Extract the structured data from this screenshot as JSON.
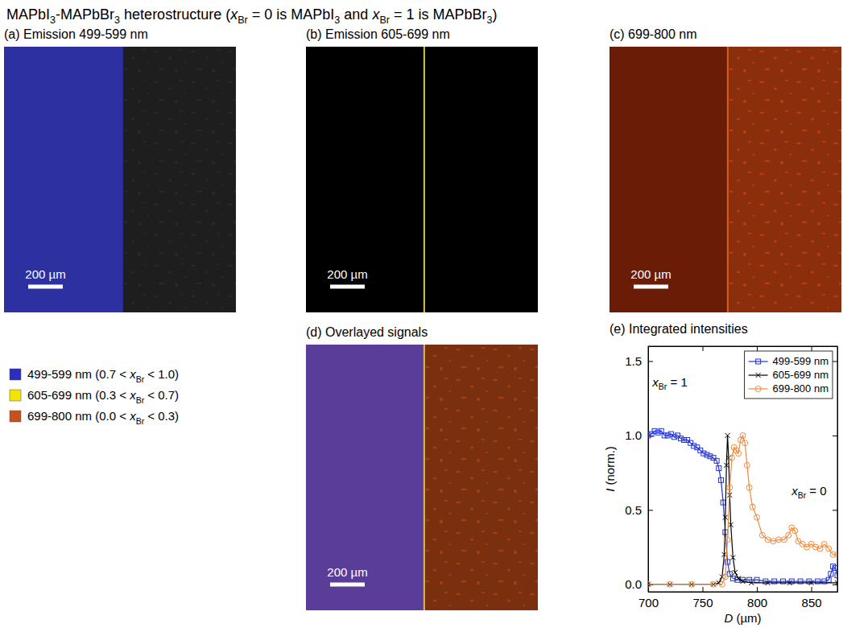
{
  "title": "MAPbI3-MAPbBr3 heterostructure (xBr = 0 is MAPbI3 and xBr = 1 is MAPbBr3)",
  "legend_key": [
    {
      "label": "499-599 nm (0.7 < xBr < 1.0)",
      "color": "#2b2fbf"
    },
    {
      "label": "605-699 nm (0.3 < xBr < 0.7)",
      "color": "#f2e600"
    },
    {
      "label": "699-800 nm (0.0 < xBr < 0.3)",
      "color": "#c8501e"
    }
  ],
  "chart_data": [
    {
      "type": "image",
      "title": "(a) Emission 499-599 nm",
      "colors": [
        "#2c30a0",
        "#1e1e1e",
        "#2c30a0"
      ],
      "scale_bar": {
        "label": "200 µm",
        "length": 200
      },
      "field_width": 1340
    },
    {
      "type": "image",
      "title": "(b) Emission 605-699 nm",
      "colors": [
        "#000000",
        "#000000",
        "#d8c63a"
      ],
      "scale_bar": {
        "label": "200 µm",
        "length": 200
      },
      "field_width": 1340
    },
    {
      "type": "image",
      "title": "(c) 699-800 nm",
      "colors": [
        "#6a1c06",
        "#8a2e0c",
        "#d2602a"
      ],
      "scale_bar": {
        "label": "200 µm",
        "length": 200
      },
      "field_width": 1340
    },
    {
      "type": "image",
      "title": "(d) Overlayed signals",
      "colors": [
        "#5a3d98",
        "#7a300e",
        "#d8b860"
      ],
      "scale_bar": {
        "label": "200 µm",
        "length": 200
      },
      "field_width": 1340
    },
    {
      "type": "line",
      "title": "(e) Integrated intensities",
      "x_label": "D (µm)",
      "y_label": "I (norm.)",
      "xlim": [
        700,
        874
      ],
      "ylim": [
        -0.05,
        1.6
      ],
      "xticks": [
        700,
        750,
        800,
        850
      ],
      "yticks": [
        {
          "value": 0,
          "label": "0.0"
        },
        {
          "value": 0.5,
          "label": "0.5"
        },
        {
          "value": 1,
          "label": "1.0"
        },
        {
          "value": 1.5,
          "label": "1.5"
        }
      ],
      "legend": "upper right",
      "annotations": [
        {
          "text": "xBr = 1",
          "x": 720,
          "y": 1.33
        },
        {
          "text": "xBr = 0",
          "x": 848,
          "y": 0.6
        }
      ],
      "series": [
        {
          "name": "499-599 nm",
          "color": "#2233cc",
          "marker": "square",
          "x": [
            700,
            703,
            706,
            709,
            712,
            715,
            718,
            721,
            724,
            727,
            730,
            733,
            736,
            739,
            742,
            745,
            748,
            751,
            754,
            757,
            760,
            763,
            765,
            767,
            769,
            771,
            773,
            775,
            778,
            782,
            787,
            793,
            800,
            808,
            816,
            824,
            832,
            840,
            848,
            856,
            862,
            866,
            868,
            870,
            872,
            874
          ],
          "values": [
            1.0,
            1.01,
            1.03,
            1.02,
            1.03,
            1.0,
            1.0,
            1.01,
            0.99,
            1.0,
            0.98,
            0.97,
            0.97,
            0.95,
            0.93,
            0.92,
            0.9,
            0.88,
            0.87,
            0.86,
            0.85,
            0.83,
            0.78,
            0.7,
            0.55,
            0.35,
            0.15,
            0.07,
            0.04,
            0.03,
            0.03,
            0.03,
            0.03,
            0.02,
            0.02,
            0.02,
            0.02,
            0.02,
            0.02,
            0.02,
            0.02,
            0.03,
            0.07,
            0.12,
            0.11,
            0.06
          ]
        },
        {
          "name": "605-699 nm",
          "color": "#000000",
          "marker": "x",
          "x": [
            700,
            720,
            740,
            760,
            765,
            768,
            770,
            771,
            772,
            773,
            774,
            775,
            776,
            778,
            780,
            783,
            787,
            795,
            810,
            830,
            850,
            874
          ],
          "values": [
            0,
            0,
            0,
            0,
            0.01,
            0.05,
            0.2,
            0.45,
            0.8,
            1.0,
            0.85,
            0.6,
            0.4,
            0.18,
            0.08,
            0.04,
            0.02,
            0.01,
            0.01,
            0.01,
            0.01,
            0.01
          ]
        },
        {
          "name": "699-800 nm",
          "color": "#f08a3c",
          "marker": "circle",
          "x": [
            700,
            720,
            740,
            760,
            768,
            771,
            773,
            775,
            777,
            779,
            781,
            783,
            785,
            787,
            789,
            791,
            793,
            796,
            800,
            805,
            810,
            815,
            820,
            825,
            829,
            832,
            835,
            838,
            842,
            846,
            850,
            854,
            858,
            862,
            866,
            870,
            874
          ],
          "values": [
            0,
            0,
            0,
            0,
            0,
            0.05,
            0.3,
            0.65,
            0.85,
            0.92,
            0.9,
            0.88,
            0.97,
            1.0,
            0.95,
            0.8,
            0.65,
            0.52,
            0.45,
            0.33,
            0.3,
            0.29,
            0.3,
            0.3,
            0.33,
            0.38,
            0.36,
            0.29,
            0.27,
            0.25,
            0.27,
            0.25,
            0.24,
            0.27,
            0.24,
            0.2,
            0.2
          ]
        }
      ]
    }
  ]
}
